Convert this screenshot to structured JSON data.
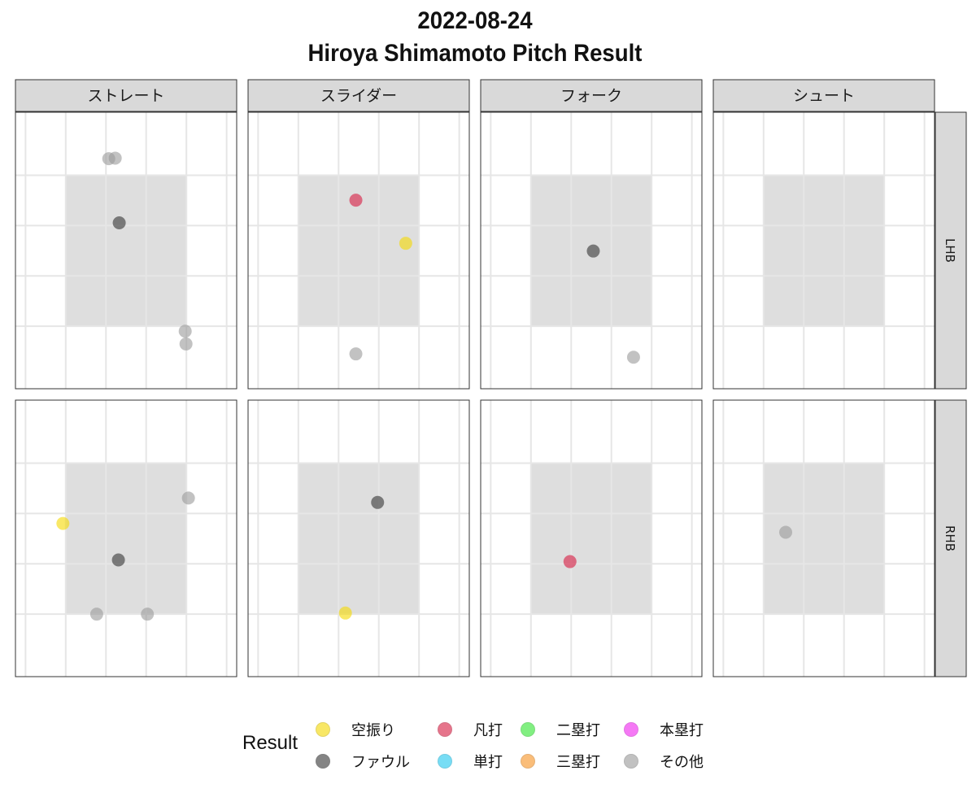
{
  "title": {
    "line1": "2022-08-24",
    "line2": "Hiroya Shimamoto Pitch Result"
  },
  "legend": {
    "title": "Result",
    "items": [
      {
        "label": "空振り",
        "color": "#F5D800"
      },
      {
        "label": "ファウル",
        "color": "#333333"
      },
      {
        "label": "凡打",
        "color": "#D7193F"
      },
      {
        "label": "単打",
        "color": "#1EC8F0"
      },
      {
        "label": "二塁打",
        "color": "#2EE62E"
      },
      {
        "label": "三塁打",
        "color": "#F79221"
      },
      {
        "label": "本塁打",
        "color": "#F020F0"
      },
      {
        "label": "その他",
        "color": "#999999"
      }
    ]
  },
  "chart_data": {
    "type": "scatter",
    "facet_columns": [
      "ストレート",
      "スライダー",
      "フォーク",
      "シュート"
    ],
    "facet_rows": [
      "LHB",
      "RHB"
    ],
    "xlim": [
      -1.25,
      1.5
    ],
    "ylim": [
      0.0,
      5.0
    ],
    "strike_zone": {
      "x": [
        -0.625,
        0.875
      ],
      "y": [
        1.13,
        3.86
      ]
    },
    "grid": true,
    "legend_position": "bottom",
    "points": [
      {
        "pitch": "ストレート",
        "batter": "LHB",
        "x": -0.09,
        "y": 4.16,
        "result": "その他"
      },
      {
        "pitch": "ストレート",
        "batter": "LHB",
        "x": -0.01,
        "y": 4.17,
        "result": "その他"
      },
      {
        "pitch": "ストレート",
        "batter": "LHB",
        "x": 0.04,
        "y": 3.0,
        "result": "ファウル"
      },
      {
        "pitch": "ストレート",
        "batter": "LHB",
        "x": 0.86,
        "y": 1.04,
        "result": "その他"
      },
      {
        "pitch": "ストレート",
        "batter": "LHB",
        "x": 0.87,
        "y": 0.81,
        "result": "その他"
      },
      {
        "pitch": "スライダー",
        "batter": "LHB",
        "x": 0.09,
        "y": 3.41,
        "result": "凡打"
      },
      {
        "pitch": "スライダー",
        "batter": "LHB",
        "x": 0.71,
        "y": 2.63,
        "result": "空振り"
      },
      {
        "pitch": "スライダー",
        "batter": "LHB",
        "x": 0.09,
        "y": 0.63,
        "result": "その他"
      },
      {
        "pitch": "フォーク",
        "batter": "LHB",
        "x": 0.15,
        "y": 2.49,
        "result": "ファウル"
      },
      {
        "pitch": "フォーク",
        "batter": "LHB",
        "x": 0.65,
        "y": 0.57,
        "result": "その他"
      },
      {
        "pitch": "ストレート",
        "batter": "RHB",
        "x": 0.9,
        "y": 3.23,
        "result": "その他"
      },
      {
        "pitch": "ストレート",
        "batter": "RHB",
        "x": -0.66,
        "y": 2.77,
        "result": "空振り"
      },
      {
        "pitch": "ストレート",
        "batter": "RHB",
        "x": 0.03,
        "y": 2.11,
        "result": "ファウル"
      },
      {
        "pitch": "ストレート",
        "batter": "RHB",
        "x": -0.24,
        "y": 1.13,
        "result": "その他"
      },
      {
        "pitch": "ストレート",
        "batter": "RHB",
        "x": 0.39,
        "y": 1.13,
        "result": "その他"
      },
      {
        "pitch": "スライダー",
        "batter": "RHB",
        "x": 0.36,
        "y": 3.15,
        "result": "ファウル"
      },
      {
        "pitch": "スライダー",
        "batter": "RHB",
        "x": -0.04,
        "y": 1.15,
        "result": "空振り"
      },
      {
        "pitch": "フォーク",
        "batter": "RHB",
        "x": -0.14,
        "y": 2.08,
        "result": "凡打"
      },
      {
        "pitch": "シュート",
        "batter": "RHB",
        "x": -0.35,
        "y": 2.61,
        "result": "その他"
      }
    ]
  }
}
